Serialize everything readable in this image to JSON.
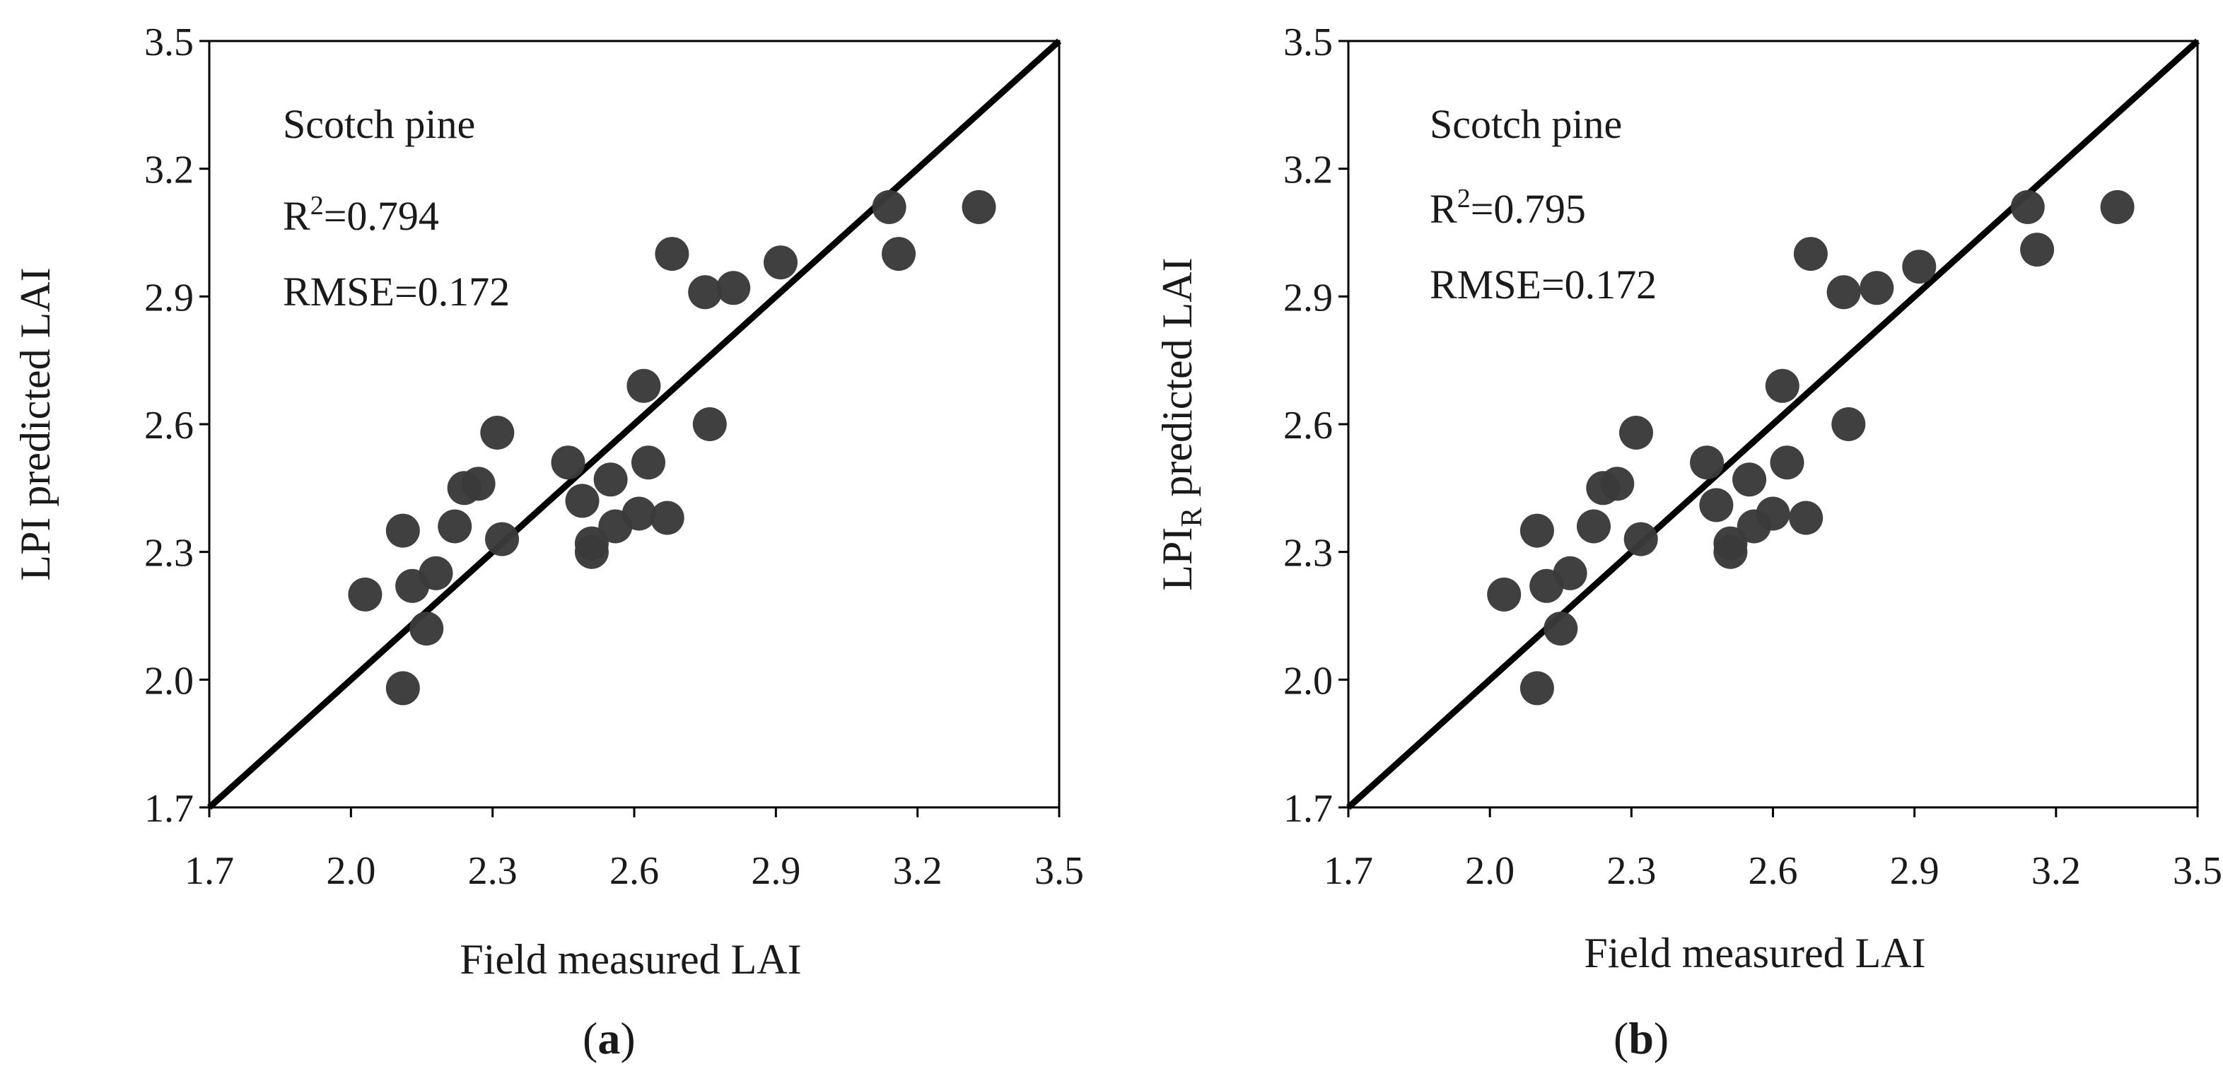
{
  "colors": {
    "point": "#3a3a3a",
    "line": "#000000",
    "frame": "#000000",
    "text": "#1a1a1a"
  },
  "chart_data": [
    {
      "type": "scatter",
      "panel_label": "a",
      "xlabel": "Field measured LAI",
      "ylabel": "LPI predicted LAI",
      "ylabel_main": "LPI predicted LAI",
      "ylabel_sub": "",
      "xlim": [
        1.7,
        3.5
      ],
      "ylim": [
        1.7,
        3.5
      ],
      "xticks": [
        "1.7",
        "2.0",
        "2.3",
        "2.6",
        "2.9",
        "3.2",
        "3.5"
      ],
      "yticks": [
        "1.7",
        "2.0",
        "2.3",
        "2.6",
        "2.9",
        "3.2",
        "3.5"
      ],
      "grid": false,
      "reference_line": "1:1",
      "annotations": {
        "species": "Scotch pine",
        "r2": "R²=0.794",
        "r2_prefix": "R",
        "r2_sup": "2",
        "r2_suffix": "=0.794",
        "rmse": "RMSE=0.172"
      },
      "points": [
        [
          2.03,
          2.2
        ],
        [
          2.11,
          2.35
        ],
        [
          2.11,
          1.98
        ],
        [
          2.13,
          2.22
        ],
        [
          2.16,
          2.12
        ],
        [
          2.18,
          2.25
        ],
        [
          2.22,
          2.36
        ],
        [
          2.24,
          2.45
        ],
        [
          2.27,
          2.46
        ],
        [
          2.31,
          2.58
        ],
        [
          2.32,
          2.33
        ],
        [
          2.46,
          2.51
        ],
        [
          2.49,
          2.42
        ],
        [
          2.51,
          2.32
        ],
        [
          2.51,
          2.3
        ],
        [
          2.55,
          2.47
        ],
        [
          2.56,
          2.36
        ],
        [
          2.61,
          2.39
        ],
        [
          2.62,
          2.69
        ],
        [
          2.63,
          2.51
        ],
        [
          2.67,
          2.38
        ],
        [
          2.68,
          3.0
        ],
        [
          2.75,
          2.91
        ],
        [
          2.76,
          2.6
        ],
        [
          2.81,
          2.92
        ],
        [
          2.91,
          2.98
        ],
        [
          3.14,
          3.11
        ],
        [
          3.16,
          3.0
        ],
        [
          3.33,
          3.11
        ]
      ]
    },
    {
      "type": "scatter",
      "panel_label": "b",
      "xlabel": "Field measured LAI",
      "ylabel": "LPIR predicted LAI",
      "ylabel_main": "LPI",
      "ylabel_sub": "R",
      "ylabel_rest": " predicted LAI",
      "xlim": [
        1.7,
        3.5
      ],
      "ylim": [
        1.7,
        3.5
      ],
      "xticks": [
        "1.7",
        "2.0",
        "2.3",
        "2.6",
        "2.9",
        "3.2",
        "3.5"
      ],
      "yticks": [
        "1.7",
        "2.0",
        "2.3",
        "2.6",
        "2.9",
        "3.2",
        "3.5"
      ],
      "grid": false,
      "reference_line": "1:1",
      "annotations": {
        "species": "Scotch pine",
        "r2": "R²=0.795",
        "r2_prefix": "R",
        "r2_sup": "2",
        "r2_suffix": "=0.795",
        "rmse": "RMSE=0.172"
      },
      "points": [
        [
          2.03,
          2.2
        ],
        [
          2.1,
          2.35
        ],
        [
          2.1,
          1.98
        ],
        [
          2.12,
          2.22
        ],
        [
          2.15,
          2.12
        ],
        [
          2.17,
          2.25
        ],
        [
          2.22,
          2.36
        ],
        [
          2.24,
          2.45
        ],
        [
          2.27,
          2.46
        ],
        [
          2.31,
          2.58
        ],
        [
          2.32,
          2.33
        ],
        [
          2.46,
          2.51
        ],
        [
          2.48,
          2.41
        ],
        [
          2.51,
          2.32
        ],
        [
          2.51,
          2.3
        ],
        [
          2.55,
          2.47
        ],
        [
          2.56,
          2.36
        ],
        [
          2.6,
          2.39
        ],
        [
          2.62,
          2.69
        ],
        [
          2.63,
          2.51
        ],
        [
          2.67,
          2.38
        ],
        [
          2.68,
          3.0
        ],
        [
          2.75,
          2.91
        ],
        [
          2.76,
          2.6
        ],
        [
          2.82,
          2.92
        ],
        [
          2.91,
          2.97
        ],
        [
          3.14,
          3.11
        ],
        [
          3.16,
          3.01
        ],
        [
          3.33,
          3.11
        ]
      ]
    }
  ]
}
